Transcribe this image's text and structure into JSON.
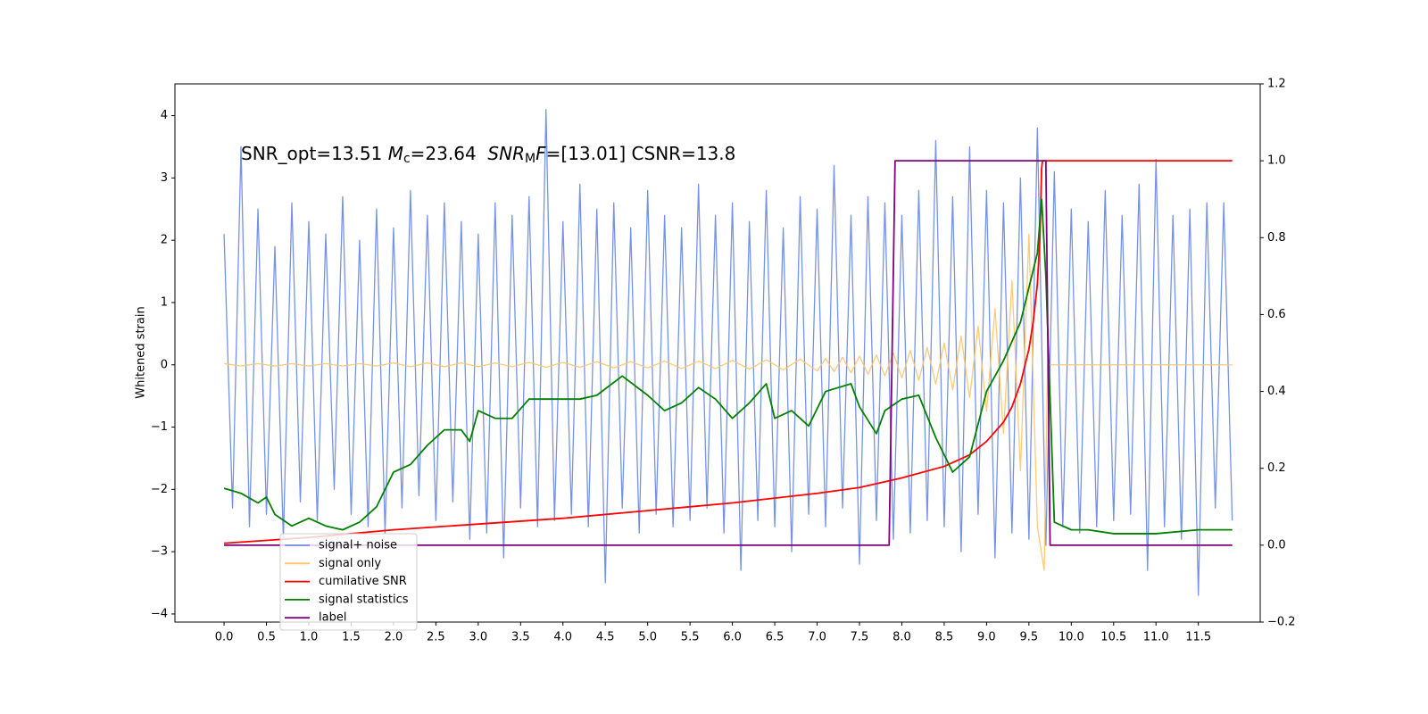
{
  "chart_data": {
    "type": "line",
    "annotation": [
      "SNR_opt=13.51 ",
      "M",
      "c",
      "=23.64  ",
      "SNR",
      "M",
      "F",
      "=[13.01] CSNR=13.8"
    ],
    "ylabel": "Whitened strain",
    "xlim": [
      -0.58,
      12.23
    ],
    "ylim": [
      -4.13,
      4.51
    ],
    "y2lim": [
      -0.2,
      1.2
    ],
    "xticks": [
      {
        "value": 0,
        "label": "0.0"
      },
      {
        "value": 0.5,
        "label": "0.5"
      },
      {
        "value": 1,
        "label": "1.0"
      },
      {
        "value": 1.5,
        "label": "1.5"
      },
      {
        "value": 2,
        "label": "2.0"
      },
      {
        "value": 2.5,
        "label": "2.5"
      },
      {
        "value": 3,
        "label": "3.0"
      },
      {
        "value": 3.5,
        "label": "3.5"
      },
      {
        "value": 4,
        "label": "4.0"
      },
      {
        "value": 4.5,
        "label": "4.5"
      },
      {
        "value": 5,
        "label": "5.0"
      },
      {
        "value": 5.5,
        "label": "5.5"
      },
      {
        "value": 6,
        "label": "6.0"
      },
      {
        "value": 6.5,
        "label": "6.5"
      },
      {
        "value": 7,
        "label": "7.0"
      },
      {
        "value": 7.5,
        "label": "7.5"
      },
      {
        "value": 8,
        "label": "8.0"
      },
      {
        "value": 8.5,
        "label": "8.5"
      },
      {
        "value": 9,
        "label": "9.0"
      },
      {
        "value": 9.5,
        "label": "9.5"
      },
      {
        "value": 10,
        "label": "10.0"
      },
      {
        "value": 10.5,
        "label": "10.5"
      },
      {
        "value": 11,
        "label": "11.0"
      },
      {
        "value": 11.5,
        "label": "11.5"
      }
    ],
    "yticks": [
      {
        "value": -4,
        "label": "−4"
      },
      {
        "value": -3,
        "label": "−3"
      },
      {
        "value": -2,
        "label": "−2"
      },
      {
        "value": -1,
        "label": "−1"
      },
      0,
      1,
      2,
      3,
      4
    ],
    "y2ticks": [
      {
        "value": -0.2,
        "label": "−0.2"
      },
      {
        "value": 0,
        "label": "0.0"
      },
      0.2,
      0.4,
      0.6,
      0.8,
      {
        "value": 1,
        "label": "1.0"
      },
      1.2
    ],
    "legend": "lower left",
    "series": [
      {
        "name": "signal+ noise",
        "color": "#6f8ce6",
        "x": [
          0,
          0.1,
          0.2,
          0.3,
          0.4,
          0.5,
          0.6,
          0.7,
          0.8,
          0.9,
          1,
          1.1,
          1.2,
          1.3,
          1.4,
          1.5,
          1.6,
          1.7,
          1.8,
          1.9,
          2,
          2.1,
          2.2,
          2.3,
          2.4,
          2.5,
          2.6,
          2.7,
          2.8,
          2.9,
          3,
          3.1,
          3.2,
          3.3,
          3.4,
          3.5,
          3.6,
          3.7,
          3.8,
          3.9,
          4,
          4.1,
          4.2,
          4.3,
          4.4,
          4.5,
          4.6,
          4.7,
          4.8,
          4.9,
          5,
          5.1,
          5.2,
          5.3,
          5.4,
          5.5,
          5.6,
          5.7,
          5.8,
          5.9,
          6,
          6.1,
          6.2,
          6.3,
          6.4,
          6.5,
          6.6,
          6.7,
          6.8,
          6.9,
          7,
          7.1,
          7.2,
          7.3,
          7.4,
          7.5,
          7.6,
          7.7,
          7.8,
          7.9,
          8,
          8.1,
          8.2,
          8.3,
          8.4,
          8.5,
          8.6,
          8.7,
          8.8,
          8.9,
          9,
          9.1,
          9.2,
          9.3,
          9.4,
          9.5,
          9.6,
          9.7,
          9.8,
          9.9,
          10,
          10.1,
          10.2,
          10.3,
          10.4,
          10.5,
          10.6,
          10.7,
          10.8,
          10.9,
          11,
          11.1,
          11.2,
          11.3,
          11.4,
          11.5,
          11.6,
          11.7,
          11.8,
          11.9
        ],
        "values": [
          2.1,
          -2.3,
          3.5,
          -2.6,
          2.5,
          -2.4,
          1.9,
          -2.8,
          2.6,
          -2.2,
          2.3,
          -2.5,
          2.1,
          -2.0,
          2.7,
          -2.4,
          2.0,
          -2.6,
          2.5,
          -2.7,
          2.2,
          -2.3,
          2.8,
          -2.1,
          2.4,
          -2.5,
          2.6,
          -2.2,
          2.3,
          -2.8,
          2.1,
          -2.7,
          2.6,
          -3.1,
          2.4,
          -2.3,
          2.7,
          -2.6,
          4.1,
          -2.5,
          2.3,
          -2.4,
          2.9,
          -2.6,
          2.5,
          -3.5,
          2.6,
          -2.3,
          2.2,
          -2.7,
          2.8,
          -2.4,
          2.4,
          -2.6,
          2.2,
          -2.5,
          2.9,
          -2.3,
          2.4,
          -2.7,
          2.6,
          -3.3,
          2.3,
          -2.5,
          2.8,
          -2.6,
          2.2,
          -3.0,
          2.7,
          -2.4,
          2.5,
          -2.6,
          3.2,
          -2.3,
          2.4,
          -3.2,
          2.7,
          -2.5,
          2.6,
          -2.8,
          2.4,
          -2.7,
          2.8,
          -2.5,
          3.6,
          -2.6,
          2.7,
          -3.0,
          3.5,
          -2.4,
          2.8,
          -3.1,
          2.6,
          -2.7,
          3.0,
          -2.8,
          3.8,
          -2.9,
          3.1,
          -2.6,
          2.5,
          -2.7,
          2.3,
          -2.6,
          2.8,
          -2.5,
          2.4,
          -2.4,
          2.9,
          -3.3,
          3.3,
          -2.6,
          2.4,
          -2.8,
          2.5,
          -3.7,
          2.6,
          -2.3,
          2.6,
          -2.5
        ]
      },
      {
        "name": "signal only",
        "color": "#ffc466",
        "x": [
          0,
          0.2,
          0.4,
          0.6,
          0.8,
          1,
          1.2,
          1.4,
          1.6,
          1.8,
          2,
          2.2,
          2.4,
          2.6,
          2.8,
          3,
          3.2,
          3.4,
          3.6,
          3.8,
          4,
          4.2,
          4.4,
          4.6,
          4.8,
          5,
          5.2,
          5.4,
          5.6,
          5.8,
          6,
          6.2,
          6.4,
          6.6,
          6.8,
          7,
          7.1,
          7.2,
          7.3,
          7.4,
          7.5,
          7.6,
          7.7,
          7.8,
          7.9,
          8,
          8.1,
          8.2,
          8.3,
          8.4,
          8.5,
          8.6,
          8.7,
          8.8,
          8.9,
          9,
          9.1,
          9.2,
          9.3,
          9.4,
          9.5,
          9.6,
          9.68,
          9.72,
          11.9
        ],
        "values": [
          0.02,
          -0.02,
          0.02,
          -0.02,
          0.02,
          -0.02,
          0.02,
          -0.02,
          0.02,
          -0.02,
          0.03,
          -0.03,
          0.03,
          -0.03,
          0.03,
          -0.03,
          0.03,
          -0.03,
          0.04,
          -0.04,
          0.04,
          -0.04,
          0.05,
          -0.05,
          0.05,
          -0.05,
          0.06,
          -0.06,
          0.06,
          -0.06,
          0.07,
          -0.07,
          0.08,
          -0.08,
          0.09,
          -0.1,
          0.1,
          -0.11,
          0.12,
          -0.13,
          0.14,
          -0.15,
          0.16,
          -0.18,
          0.19,
          -0.21,
          0.23,
          -0.25,
          0.28,
          -0.31,
          0.35,
          -0.4,
          0.46,
          -0.53,
          0.62,
          -0.75,
          0.9,
          -1.1,
          1.35,
          -1.7,
          2.1,
          -2.6,
          -3.3,
          0,
          0
        ]
      },
      {
        "name": "cumilative SNR",
        "color": "red",
        "axis": "y2",
        "x": [
          0,
          1,
          2,
          3,
          4,
          5,
          6,
          7,
          7.5,
          8,
          8.5,
          8.8,
          9,
          9.2,
          9.3,
          9.4,
          9.5,
          9.55,
          9.6,
          9.63,
          9.65,
          9.66,
          9.7,
          11.9
        ],
        "values": [
          0.005,
          0.02,
          0.04,
          0.055,
          0.07,
          0.09,
          0.11,
          0.135,
          0.15,
          0.175,
          0.205,
          0.235,
          0.27,
          0.32,
          0.36,
          0.42,
          0.51,
          0.58,
          0.68,
          0.8,
          0.98,
          1,
          1,
          1
        ]
      },
      {
        "name": "signal statistics",
        "color": "green",
        "axis": "y2",
        "x": [
          0,
          0.2,
          0.4,
          0.5,
          0.6,
          0.8,
          1,
          1.2,
          1.4,
          1.6,
          1.8,
          2,
          2.2,
          2.4,
          2.6,
          2.8,
          2.9,
          3,
          3.2,
          3.4,
          3.6,
          3.8,
          4,
          4.2,
          4.4,
          4.7,
          5,
          5.2,
          5.4,
          5.6,
          5.8,
          6,
          6.2,
          6.4,
          6.5,
          6.7,
          6.9,
          7.1,
          7.4,
          7.5,
          7.7,
          7.8,
          8,
          8.2,
          8.4,
          8.6,
          8.8,
          9,
          9.2,
          9.4,
          9.6,
          9.65,
          9.7,
          9.8,
          10,
          10.2,
          10.5,
          11,
          11.5,
          11.9
        ],
        "values": [
          0.148,
          0.135,
          0.11,
          0.125,
          0.08,
          0.05,
          0.07,
          0.05,
          0.04,
          0.06,
          0.1,
          0.19,
          0.21,
          0.26,
          0.3,
          0.3,
          0.27,
          0.35,
          0.33,
          0.33,
          0.38,
          0.38,
          0.38,
          0.38,
          0.39,
          0.44,
          0.39,
          0.35,
          0.37,
          0.41,
          0.38,
          0.33,
          0.37,
          0.42,
          0.33,
          0.35,
          0.31,
          0.4,
          0.42,
          0.36,
          0.29,
          0.35,
          0.38,
          0.39,
          0.28,
          0.19,
          0.23,
          0.4,
          0.48,
          0.58,
          0.76,
          0.9,
          0.7,
          0.06,
          0.04,
          0.04,
          0.03,
          0.03,
          0.04,
          0.04
        ]
      },
      {
        "name": "label",
        "color": "purple",
        "axis": "y2",
        "x": [
          0,
          7.85,
          7.92,
          9.7,
          9.75,
          11.9
        ],
        "values": [
          0,
          0,
          1,
          1,
          0,
          0
        ]
      }
    ]
  }
}
